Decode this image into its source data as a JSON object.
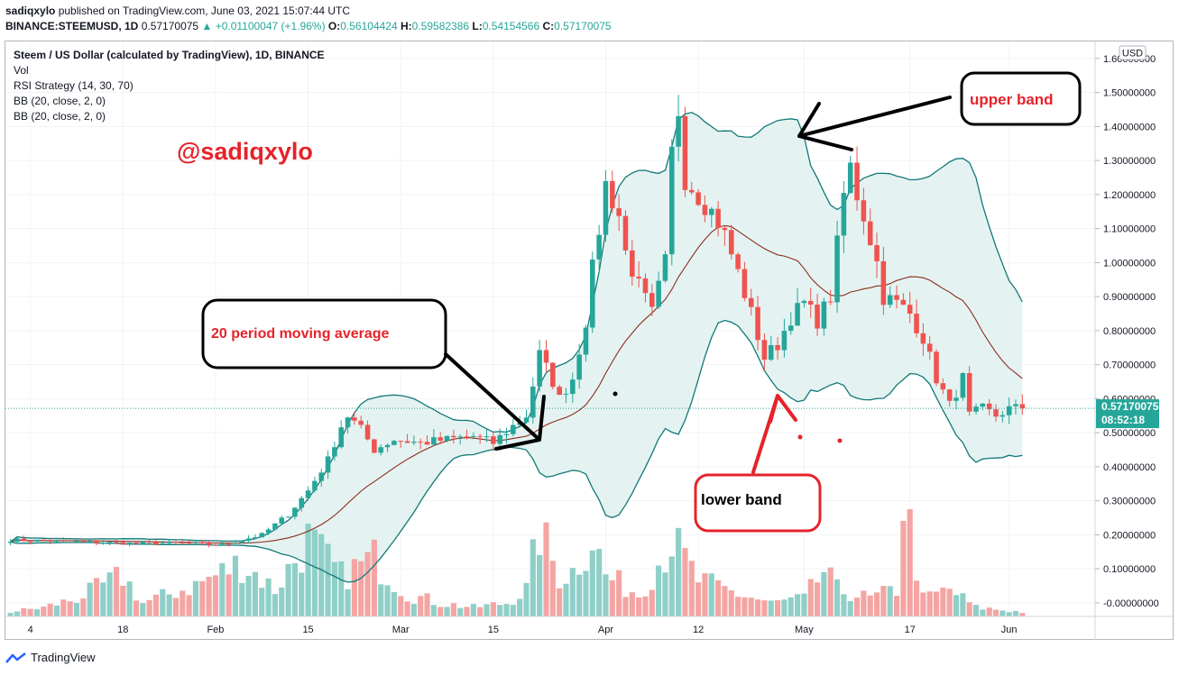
{
  "header": {
    "publisher": "sadiqxylo",
    "published_text": "published on TradingView.com, June 03, 2021 15:07:44 UTC",
    "symbol": "BINANCE:STEEMUSD, 1D",
    "last_value": "0.57170075",
    "change": "+0.01100047 (+1.96%)",
    "open_label": "O:",
    "open_value": "0.56104424",
    "high_label": "H:",
    "high_value": "0.59582386",
    "low_label": "L:",
    "low_value": "0.54154566",
    "close_label": "C:",
    "close_value": "0.57170075"
  },
  "legend": {
    "title": "Steem / US Dollar (calculated by TradingView), 1D, BINANCE",
    "items": [
      "Vol",
      "RSI Strategy (14, 30, 70)",
      "BB (20, close, 2, 0)",
      "BB (20, close, 2, 0)"
    ]
  },
  "watermark": "@sadiqxylo",
  "annotations": {
    "moving_average": "20 period moving average",
    "upper_band": "upper band",
    "lower_band": "lower band"
  },
  "footer": {
    "brand": "TradingView"
  },
  "colors": {
    "up": "#26a69a",
    "down": "#ef5350",
    "band": "#0c7a7a",
    "basis": "#8d2c1e",
    "band_fill": "#e3f2f1",
    "annotation_red": "#e5232a"
  },
  "chart_data": {
    "type": "candlestick",
    "currency_label": "USD",
    "y_ticks": [
      "1.60000000",
      "1.50000000",
      "1.40000000",
      "1.30000000",
      "1.20000000",
      "1.10000000",
      "1.00000000",
      "0.90000000",
      "0.80000000",
      "0.70000000",
      "0.60000000",
      "0.50000000",
      "0.40000000",
      "0.30000000",
      "0.20000000",
      "0.10000000",
      "-0.00000000"
    ],
    "y_tick_values": [
      1.6,
      1.5,
      1.4,
      1.3,
      1.2,
      1.1,
      1.0,
      0.9,
      0.8,
      0.7,
      0.6,
      0.5,
      0.4,
      0.3,
      0.2,
      0.1,
      0.0
    ],
    "ylim": [
      -0.04,
      1.65
    ],
    "x_labels": [
      "4",
      "18",
      "Feb",
      "15",
      "Mar",
      "15",
      "Apr",
      "12",
      "May",
      "17",
      "Jun"
    ],
    "x_label_days": [
      3,
      17,
      31,
      45,
      59,
      73,
      90,
      104,
      120,
      136,
      151
    ],
    "days": 154,
    "current_price": 0.5717,
    "current_price_label": "0.57170075",
    "countdown_label": "08:52:18",
    "close_anchors": [
      [
        0,
        0.185
      ],
      [
        10,
        0.18
      ],
      [
        18,
        0.175
      ],
      [
        26,
        0.175
      ],
      [
        32,
        0.17
      ],
      [
        36,
        0.19
      ],
      [
        38,
        0.2
      ],
      [
        42,
        0.26
      ],
      [
        45,
        0.33
      ],
      [
        48,
        0.42
      ],
      [
        50,
        0.52
      ],
      [
        51,
        0.55
      ],
      [
        53,
        0.51
      ],
      [
        55,
        0.45
      ],
      [
        58,
        0.48
      ],
      [
        62,
        0.47
      ],
      [
        66,
        0.48
      ],
      [
        70,
        0.49
      ],
      [
        73,
        0.47
      ],
      [
        76,
        0.52
      ],
      [
        78,
        0.55
      ],
      [
        80,
        0.73
      ],
      [
        82,
        0.65
      ],
      [
        83,
        0.6
      ],
      [
        85,
        0.66
      ],
      [
        87,
        0.83
      ],
      [
        88,
        0.98
      ],
      [
        89,
        1.1
      ],
      [
        90,
        1.23
      ],
      [
        92,
        1.14
      ],
      [
        93,
        1.03
      ],
      [
        95,
        0.93
      ],
      [
        97,
        0.85
      ],
      [
        99,
        1.0
      ],
      [
        100,
        1.32
      ],
      [
        101,
        1.45
      ],
      [
        102,
        1.25
      ],
      [
        104,
        1.2
      ],
      [
        106,
        1.15
      ],
      [
        107,
        1.12
      ],
      [
        108,
        1.08
      ],
      [
        110,
        0.97
      ],
      [
        112,
        0.85
      ],
      [
        114,
        0.72
      ],
      [
        116,
        0.76
      ],
      [
        118,
        0.84
      ],
      [
        120,
        0.88
      ],
      [
        122,
        0.83
      ],
      [
        124,
        0.9
      ],
      [
        126,
        1.2
      ],
      [
        127,
        1.28
      ],
      [
        128,
        1.2
      ],
      [
        129,
        1.14
      ],
      [
        131,
        1.0
      ],
      [
        132,
        0.9
      ],
      [
        134,
        0.88
      ],
      [
        136,
        0.85
      ],
      [
        138,
        0.78
      ],
      [
        140,
        0.66
      ],
      [
        141,
        0.62
      ],
      [
        142,
        0.58
      ],
      [
        144,
        0.66
      ],
      [
        145,
        0.55
      ],
      [
        147,
        0.57
      ],
      [
        149,
        0.55
      ],
      [
        151,
        0.57
      ],
      [
        153,
        0.5717
      ]
    ],
    "volume_anchors": [
      [
        0,
        0.01
      ],
      [
        5,
        0.02
      ],
      [
        10,
        0.04
      ],
      [
        17,
        0.09
      ],
      [
        20,
        0.03
      ],
      [
        28,
        0.07
      ],
      [
        35,
        0.12
      ],
      [
        40,
        0.06
      ],
      [
        45,
        0.17
      ],
      [
        50,
        0.09
      ],
      [
        55,
        0.13
      ],
      [
        60,
        0.05
      ],
      [
        65,
        0.03
      ],
      [
        70,
        0.02
      ],
      [
        75,
        0.03
      ],
      [
        78,
        0.06
      ],
      [
        80,
        0.19
      ],
      [
        83,
        0.09
      ],
      [
        85,
        0.1
      ],
      [
        88,
        0.18
      ],
      [
        90,
        0.09
      ],
      [
        95,
        0.05
      ],
      [
        100,
        0.17
      ],
      [
        104,
        0.08
      ],
      [
        110,
        0.05
      ],
      [
        115,
        0.03
      ],
      [
        120,
        0.04
      ],
      [
        123,
        0.1
      ],
      [
        125,
        0.06
      ],
      [
        130,
        0.04
      ],
      [
        134,
        0.06
      ],
      [
        135,
        0.27
      ],
      [
        138,
        0.04
      ],
      [
        142,
        0.06
      ],
      [
        146,
        0.02
      ],
      [
        153,
        0.01
      ]
    ],
    "volume_scale_top": 0.33
  }
}
